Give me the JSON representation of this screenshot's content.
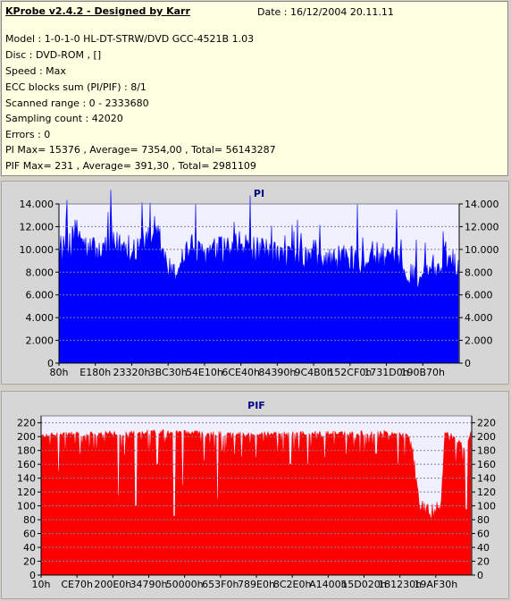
{
  "info": {
    "title": "KProbe v2.4.2 - Designed by Karr",
    "date": "Date : 16/12/2004 20.11.11",
    "lines": [
      "Model : 1-0-1-0 HL-DT-STRW/DVD GCC-4521B 1.03",
      "Disc : DVD-ROM ,  []",
      "Speed : Max",
      "ECC blocks sum (PI/PIF) : 8/1",
      "Scanned range : 0 - 2333680",
      "Sampling count : 42020",
      "Errors : 0",
      "PI Max= 15376 , Average= 7354,00 , Total= 56143287",
      "PIF Max= 231 , Average= 391,30 , Total= 2981109"
    ]
  },
  "chart_data": [
    {
      "type": "area",
      "title": "PI",
      "color": "#0000ff",
      "ylim": [
        0,
        14000
      ],
      "yticks": [
        0,
        2000,
        4000,
        6000,
        8000,
        10000,
        12000,
        14000
      ],
      "ytick_labels": [
        "0",
        "2.000",
        "4.000",
        "6.000",
        "8.000",
        "10.000",
        "12.000",
        "14.000"
      ],
      "xtick_labels": [
        "80h",
        "E180h",
        "23320h",
        "3BC30h",
        "54E10h",
        "6CE40h",
        "84390h",
        "9C4B0h",
        "152CF0h",
        "1731D0h",
        "190B70h"
      ],
      "grid": true,
      "profile_x": [
        0,
        0.03,
        0.05,
        0.07,
        0.1,
        0.15,
        0.2,
        0.25,
        0.27,
        0.29,
        0.31,
        0.33,
        0.35,
        0.4,
        0.45,
        0.5,
        0.55,
        0.6,
        0.65,
        0.7,
        0.75,
        0.8,
        0.82,
        0.85,
        0.87,
        0.9,
        0.92,
        0.95,
        0.97,
        1.0
      ],
      "profile_y": [
        9500,
        10500,
        11500,
        10000,
        9800,
        10300,
        10200,
        11000,
        8500,
        7700,
        9400,
        10200,
        9500,
        9800,
        10200,
        9700,
        9400,
        9300,
        9200,
        9100,
        9300,
        9500,
        9100,
        8900,
        8000,
        7600,
        7800,
        8300,
        9500,
        8500
      ],
      "spike_max": 15376
    },
    {
      "type": "area",
      "title": "PIF",
      "color": "#ff0000",
      "ylim": [
        0,
        230
      ],
      "yticks": [
        0,
        20,
        40,
        60,
        80,
        100,
        120,
        140,
        160,
        180,
        200,
        220
      ],
      "ytick_labels": [
        "0",
        "20",
        "40",
        "60",
        "80",
        "100",
        "120",
        "140",
        "160",
        "180",
        "200",
        "220"
      ],
      "xtick_labels": [
        "10h",
        "CE70h",
        "200E0h",
        "34790h",
        "50000h",
        "653F0h",
        "789E0h",
        "8C2E0h",
        "A1400h",
        "15D020h",
        "181230h",
        "19AF30h"
      ],
      "grid": true,
      "profile_x": [
        0,
        0.02,
        0.2,
        0.25,
        0.45,
        0.6,
        0.8,
        0.86,
        0.88,
        0.9,
        0.93,
        0.94,
        0.96,
        0.99,
        1.0
      ],
      "profile_y": [
        200,
        203,
        205,
        207,
        203,
        204,
        205,
        200,
        100,
        90,
        95,
        205,
        200,
        180,
        208
      ],
      "dips": [
        {
          "x": 0.04,
          "y": 150
        },
        {
          "x": 0.09,
          "y": 175
        },
        {
          "x": 0.18,
          "y": 115
        },
        {
          "x": 0.22,
          "y": 100
        },
        {
          "x": 0.27,
          "y": 160
        },
        {
          "x": 0.31,
          "y": 85
        },
        {
          "x": 0.33,
          "y": 130
        },
        {
          "x": 0.38,
          "y": 165
        },
        {
          "x": 0.41,
          "y": 110
        },
        {
          "x": 0.45,
          "y": 175
        },
        {
          "x": 0.5,
          "y": 170
        },
        {
          "x": 0.58,
          "y": 160
        },
        {
          "x": 0.62,
          "y": 160
        },
        {
          "x": 0.66,
          "y": 170
        },
        {
          "x": 0.71,
          "y": 175
        },
        {
          "x": 0.78,
          "y": 175
        },
        {
          "x": 0.83,
          "y": 160
        },
        {
          "x": 0.99,
          "y": 95
        }
      ],
      "spike_max": 231
    }
  ]
}
